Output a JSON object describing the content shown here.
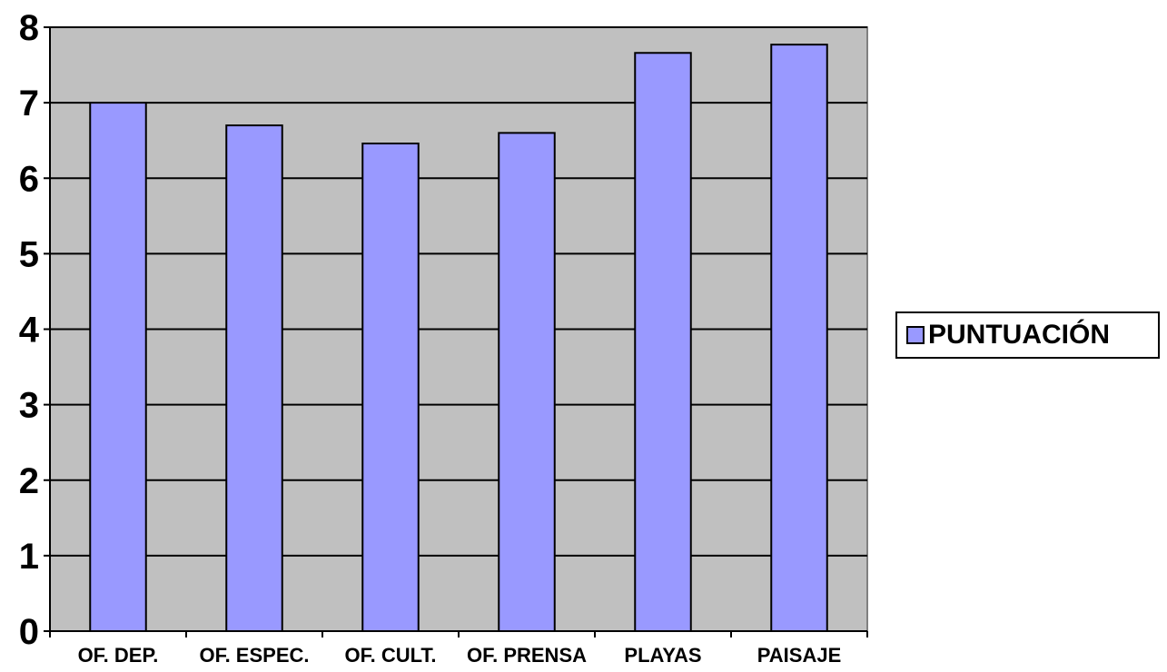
{
  "chart_data": {
    "type": "bar",
    "title": "",
    "xlabel": "",
    "ylabel": "",
    "categories": [
      "OF. DEP.",
      "OF. ESPEC.",
      "OF. CULT.",
      "OF. PRENSA",
      "PLAYAS",
      "PAISAJE"
    ],
    "series": [
      {
        "name": "PUNTUACIÓN",
        "values": [
          7.0,
          6.7,
          6.46,
          6.6,
          7.66,
          7.77
        ]
      }
    ],
    "ylim": [
      0,
      8
    ],
    "yticks": [
      "0",
      "1",
      "2",
      "3",
      "4",
      "5",
      "6",
      "7",
      "8"
    ],
    "grid": true,
    "legend_position": "right",
    "colors": {
      "bar_fill": "#9999ff",
      "plot_background": "#c0c0c0",
      "gridline": "#000000",
      "axis": "#000000"
    }
  }
}
